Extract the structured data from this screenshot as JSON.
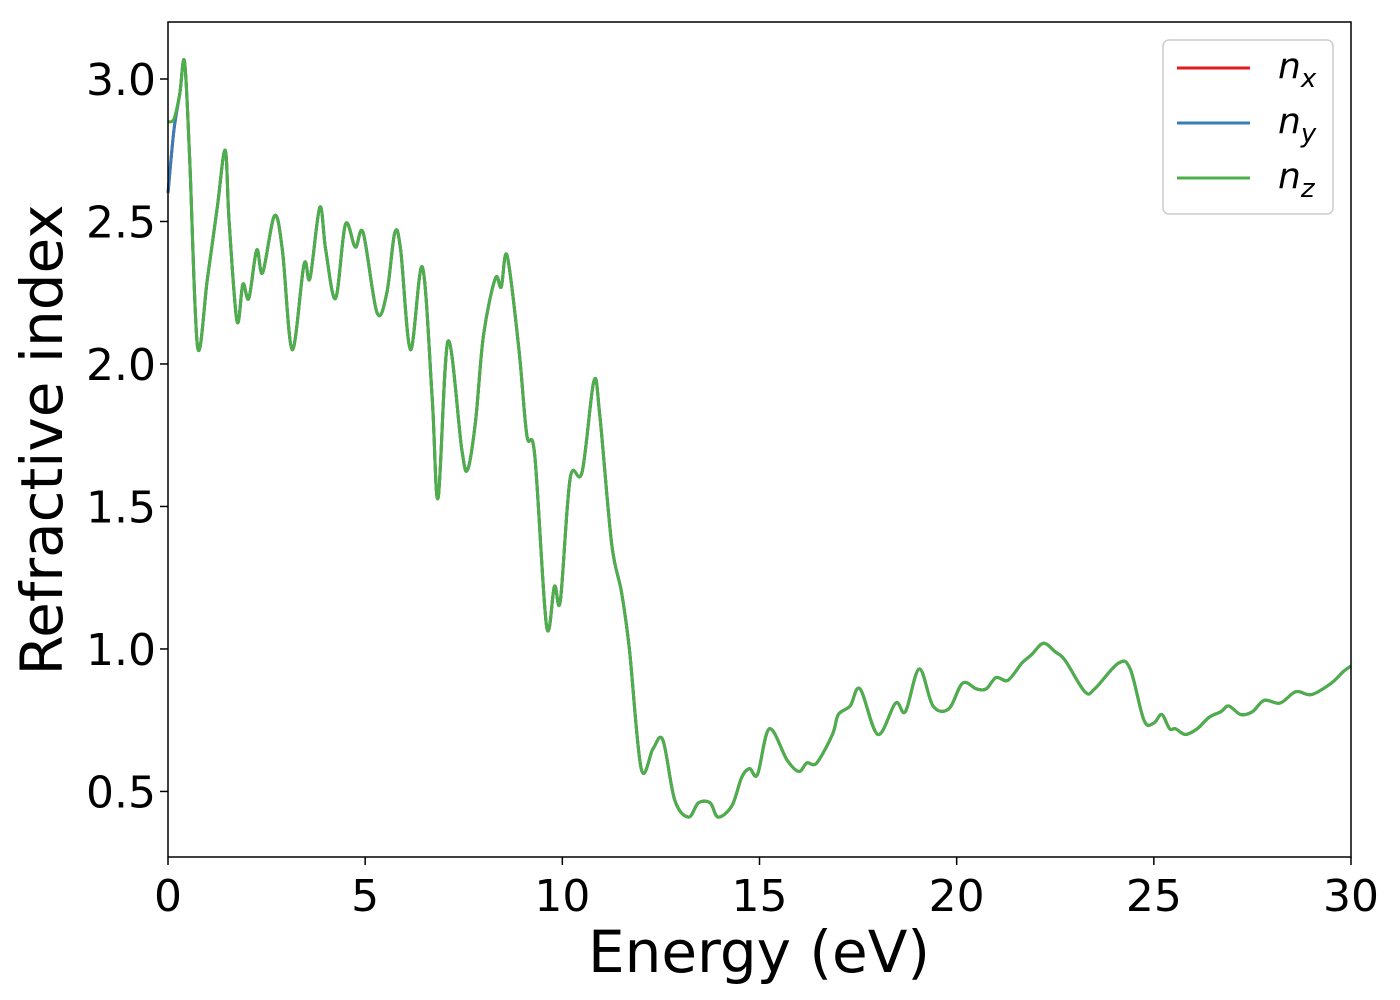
{
  "chart_data": {
    "type": "line",
    "xlabel": "Energy (eV)",
    "ylabel": "Refractive index",
    "xlim": [
      0,
      30
    ],
    "ylim": [
      0.27,
      3.2
    ],
    "xticks": [
      0,
      5,
      10,
      15,
      20,
      25,
      30
    ],
    "xtick_labels": [
      "0",
      "5",
      "10",
      "15",
      "20",
      "25",
      "30"
    ],
    "yticks": [
      0.5,
      1.0,
      1.5,
      2.0,
      2.5,
      3.0
    ],
    "ytick_labels": [
      "0.5",
      "1.0",
      "1.5",
      "2.0",
      "2.5",
      "3.0"
    ],
    "grid": false,
    "legend": "top-right",
    "x": [
      0.0,
      0.15,
      0.3,
      0.42,
      0.55,
      0.75,
      1.0,
      1.25,
      1.45,
      1.55,
      1.75,
      1.9,
      2.05,
      2.25,
      2.4,
      2.7,
      2.9,
      3.15,
      3.45,
      3.6,
      3.85,
      4.0,
      4.25,
      4.5,
      4.75,
      4.95,
      5.3,
      5.55,
      5.75,
      5.9,
      6.15,
      6.45,
      6.7,
      6.85,
      7.1,
      7.45,
      7.6,
      7.8,
      8.0,
      8.3,
      8.45,
      8.6,
      8.9,
      9.1,
      9.3,
      9.6,
      9.8,
      9.95,
      10.2,
      10.5,
      10.8,
      10.95,
      11.25,
      11.5,
      11.7,
      12.0,
      12.3,
      12.55,
      12.85,
      13.2,
      13.45,
      13.75,
      13.95,
      14.3,
      14.55,
      14.75,
      14.95,
      15.25,
      15.7,
      16.0,
      16.2,
      16.45,
      16.85,
      17.0,
      17.3,
      17.55,
      18.0,
      18.45,
      18.7,
      19.05,
      19.4,
      19.8,
      20.15,
      20.5,
      20.75,
      21.0,
      21.3,
      21.65,
      21.9,
      22.2,
      22.5,
      22.75,
      23.25,
      23.5,
      24.1,
      24.4,
      24.75,
      25.0,
      25.2,
      25.4,
      25.55,
      25.8,
      26.1,
      26.4,
      26.7,
      26.9,
      27.2,
      27.5,
      27.8,
      28.2,
      28.6,
      29.0,
      29.5,
      29.8,
      30.0
    ],
    "series": [
      {
        "name": "x",
        "color": "#e41a1c",
        "values": [
          2.6,
          2.82,
          2.95,
          3.06,
          2.72,
          2.06,
          2.3,
          2.55,
          2.75,
          2.5,
          2.15,
          2.28,
          2.23,
          2.4,
          2.32,
          2.52,
          2.4,
          2.05,
          2.35,
          2.3,
          2.55,
          2.4,
          2.23,
          2.49,
          2.41,
          2.46,
          2.18,
          2.25,
          2.46,
          2.4,
          2.05,
          2.34,
          1.88,
          1.53,
          2.08,
          1.7,
          1.63,
          1.8,
          2.1,
          2.3,
          2.27,
          2.38,
          2.05,
          1.75,
          1.68,
          1.08,
          1.22,
          1.17,
          1.6,
          1.62,
          1.94,
          1.82,
          1.37,
          1.2,
          1.0,
          0.58,
          0.65,
          0.68,
          0.47,
          0.41,
          0.46,
          0.46,
          0.41,
          0.45,
          0.55,
          0.58,
          0.56,
          0.72,
          0.61,
          0.57,
          0.6,
          0.6,
          0.7,
          0.77,
          0.8,
          0.86,
          0.7,
          0.81,
          0.78,
          0.93,
          0.8,
          0.79,
          0.88,
          0.86,
          0.86,
          0.9,
          0.89,
          0.95,
          0.98,
          1.02,
          0.99,
          0.96,
          0.85,
          0.86,
          0.95,
          0.93,
          0.75,
          0.74,
          0.77,
          0.72,
          0.72,
          0.7,
          0.72,
          0.76,
          0.78,
          0.8,
          0.77,
          0.78,
          0.82,
          0.81,
          0.85,
          0.84,
          0.88,
          0.92,
          0.94
        ]
      },
      {
        "name": "y",
        "color": "#377eb8",
        "values": [
          2.6,
          2.82,
          2.95,
          3.06,
          2.72,
          2.06,
          2.3,
          2.55,
          2.75,
          2.5,
          2.15,
          2.28,
          2.23,
          2.4,
          2.32,
          2.52,
          2.4,
          2.05,
          2.35,
          2.3,
          2.55,
          2.4,
          2.23,
          2.49,
          2.41,
          2.46,
          2.18,
          2.25,
          2.46,
          2.4,
          2.05,
          2.34,
          1.88,
          1.53,
          2.08,
          1.7,
          1.63,
          1.8,
          2.1,
          2.3,
          2.27,
          2.38,
          2.05,
          1.75,
          1.68,
          1.08,
          1.22,
          1.17,
          1.6,
          1.62,
          1.94,
          1.82,
          1.37,
          1.2,
          1.0,
          0.58,
          0.65,
          0.68,
          0.47,
          0.41,
          0.46,
          0.46,
          0.41,
          0.45,
          0.55,
          0.58,
          0.56,
          0.72,
          0.61,
          0.57,
          0.6,
          0.6,
          0.7,
          0.77,
          0.8,
          0.86,
          0.7,
          0.81,
          0.78,
          0.93,
          0.8,
          0.79,
          0.88,
          0.86,
          0.86,
          0.9,
          0.89,
          0.95,
          0.98,
          1.02,
          0.99,
          0.96,
          0.85,
          0.86,
          0.95,
          0.93,
          0.75,
          0.74,
          0.77,
          0.72,
          0.72,
          0.7,
          0.72,
          0.76,
          0.78,
          0.8,
          0.77,
          0.78,
          0.82,
          0.81,
          0.85,
          0.84,
          0.88,
          0.92,
          0.94
        ]
      },
      {
        "name": "z",
        "color": "#4daf4a",
        "values": [
          2.85,
          2.86,
          2.95,
          3.06,
          2.72,
          2.06,
          2.3,
          2.55,
          2.75,
          2.5,
          2.15,
          2.28,
          2.23,
          2.4,
          2.32,
          2.52,
          2.4,
          2.05,
          2.35,
          2.3,
          2.55,
          2.4,
          2.23,
          2.49,
          2.41,
          2.46,
          2.18,
          2.25,
          2.46,
          2.4,
          2.05,
          2.34,
          1.88,
          1.53,
          2.08,
          1.7,
          1.63,
          1.8,
          2.1,
          2.3,
          2.27,
          2.38,
          2.05,
          1.75,
          1.68,
          1.08,
          1.22,
          1.17,
          1.6,
          1.62,
          1.94,
          1.82,
          1.37,
          1.2,
          1.0,
          0.58,
          0.65,
          0.68,
          0.47,
          0.41,
          0.46,
          0.46,
          0.41,
          0.45,
          0.55,
          0.58,
          0.56,
          0.72,
          0.61,
          0.57,
          0.6,
          0.6,
          0.7,
          0.77,
          0.8,
          0.86,
          0.7,
          0.81,
          0.78,
          0.93,
          0.8,
          0.79,
          0.88,
          0.86,
          0.86,
          0.9,
          0.89,
          0.95,
          0.98,
          1.02,
          0.99,
          0.96,
          0.85,
          0.86,
          0.95,
          0.93,
          0.75,
          0.74,
          0.77,
          0.72,
          0.72,
          0.7,
          0.72,
          0.76,
          0.78,
          0.8,
          0.77,
          0.78,
          0.82,
          0.81,
          0.85,
          0.84,
          0.88,
          0.92,
          0.94
        ]
      }
    ],
    "legend_entries": [
      {
        "symbol": "n",
        "subscript": "x",
        "color": "#e41a1c"
      },
      {
        "symbol": "n",
        "subscript": "y",
        "color": "#377eb8"
      },
      {
        "symbol": "n",
        "subscript": "z",
        "color": "#4daf4a"
      }
    ]
  }
}
